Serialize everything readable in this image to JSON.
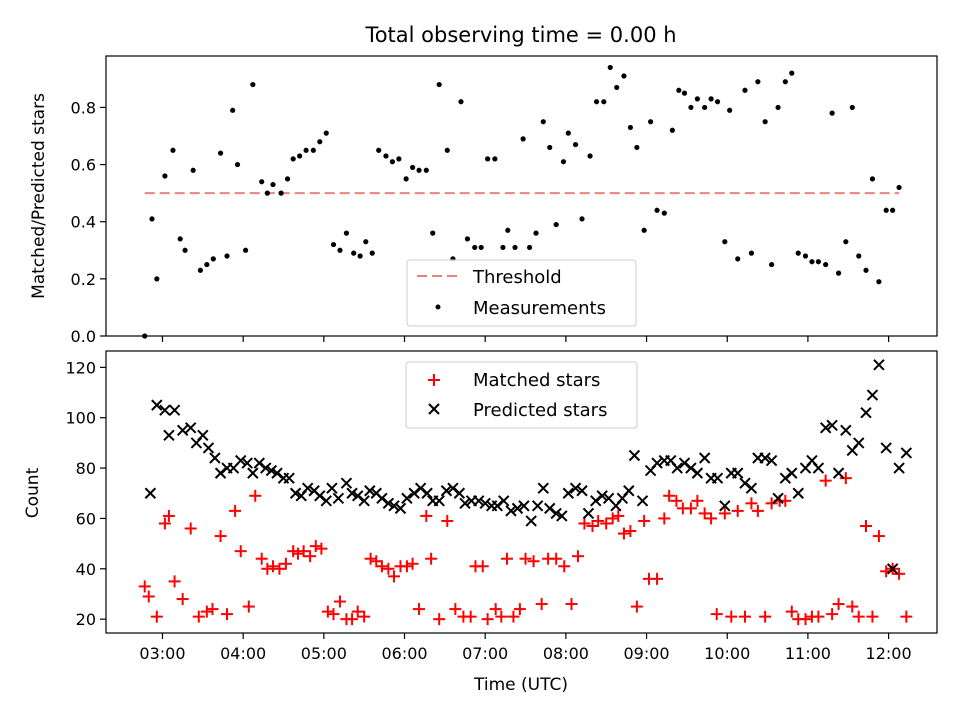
{
  "chart_data": [
    {
      "type": "scatter",
      "title": "Total observing time = 0.00 h",
      "xlabel": "",
      "ylabel": "Matched/Predicted stars",
      "ylim": [
        0,
        0.98
      ],
      "y_ticks": [
        "0.0",
        "0.2",
        "0.4",
        "0.6",
        "0.8"
      ],
      "legend_position": "bottom-center",
      "threshold": {
        "name": "Threshold",
        "value": 0.5,
        "color": "#f08080"
      },
      "series": [
        {
          "name": "Measurements",
          "color": "#000000",
          "x": [
            2.78,
            2.87,
            2.93,
            3.03,
            3.13,
            3.22,
            3.28,
            3.38,
            3.47,
            3.55,
            3.63,
            3.72,
            3.8,
            3.87,
            3.93,
            4.03,
            4.12,
            4.23,
            4.3,
            4.37,
            4.47,
            4.55,
            4.62,
            4.7,
            4.78,
            4.87,
            4.95,
            5.03,
            5.12,
            5.2,
            5.28,
            5.37,
            5.45,
            5.52,
            5.6,
            5.68,
            5.77,
            5.85,
            5.93,
            6.02,
            6.1,
            6.18,
            6.27,
            6.35,
            6.43,
            6.53,
            6.6,
            6.7,
            6.78,
            6.87,
            6.95,
            7.03,
            7.12,
            7.22,
            7.28,
            7.37,
            7.47,
            7.55,
            7.63,
            7.72,
            7.8,
            7.88,
            7.97,
            8.03,
            8.12,
            8.2,
            8.3,
            8.38,
            8.47,
            8.55,
            8.63,
            8.72,
            8.8,
            8.88,
            8.97,
            9.05,
            9.13,
            9.22,
            9.32,
            9.4,
            9.47,
            9.55,
            9.63,
            9.72,
            9.8,
            9.88,
            9.97,
            10.03,
            10.13,
            10.22,
            10.3,
            10.38,
            10.47,
            10.55,
            10.63,
            10.72,
            10.8,
            10.88,
            10.97,
            11.05,
            11.13,
            11.22,
            11.3,
            11.38,
            11.47,
            11.55,
            11.63,
            11.72,
            11.8,
            11.88,
            11.97,
            12.05,
            12.13
          ],
          "y": [
            0.0,
            0.41,
            0.2,
            0.56,
            0.65,
            0.34,
            0.3,
            0.58,
            0.23,
            0.25,
            0.27,
            0.64,
            0.28,
            0.79,
            0.6,
            0.3,
            0.88,
            0.54,
            0.5,
            0.53,
            0.5,
            0.55,
            0.62,
            0.63,
            0.65,
            0.65,
            0.68,
            0.71,
            0.32,
            0.3,
            0.36,
            0.29,
            0.28,
            0.33,
            0.29,
            0.65,
            0.63,
            0.61,
            0.62,
            0.55,
            0.59,
            0.58,
            0.58,
            0.36,
            0.88,
            0.65,
            0.27,
            0.82,
            0.34,
            0.31,
            0.31,
            0.62,
            0.62,
            0.31,
            0.37,
            0.31,
            0.69,
            0.31,
            0.36,
            0.75,
            0.66,
            0.39,
            0.61,
            0.71,
            0.67,
            0.41,
            0.63,
            0.82,
            0.82,
            0.94,
            0.87,
            0.91,
            0.73,
            0.66,
            0.37,
            0.75,
            0.44,
            0.43,
            0.72,
            0.86,
            0.85,
            0.8,
            0.83,
            0.8,
            0.83,
            0.82,
            0.33,
            0.79,
            0.27,
            0.86,
            0.29,
            0.89,
            0.75,
            0.25,
            0.8,
            0.89,
            0.92,
            0.29,
            0.28,
            0.26,
            0.26,
            0.25,
            0.78,
            0.22,
            0.33,
            0.8,
            0.28,
            0.23,
            0.55,
            0.19,
            0.44,
            0.44,
            0.52
          ]
        }
      ]
    },
    {
      "type": "scatter",
      "title": "",
      "xlabel": "Time (UTC)",
      "ylabel": "Count",
      "ylim": [
        14.5,
        126.5
      ],
      "xlim": [
        2.3,
        12.6
      ],
      "y_ticks": [
        "20",
        "40",
        "60",
        "80",
        "100",
        "120"
      ],
      "x_ticks": [
        "03:00",
        "04:00",
        "05:00",
        "06:00",
        "07:00",
        "08:00",
        "09:00",
        "10:00",
        "11:00",
        "12:00"
      ],
      "legend_position": "top-center",
      "series": [
        {
          "name": "Matched stars",
          "color": "#ff0000",
          "marker": "+",
          "x": [
            2.78,
            2.83,
            2.93,
            3.03,
            3.08,
            3.15,
            3.25,
            3.35,
            3.45,
            3.55,
            3.62,
            3.72,
            3.8,
            3.9,
            3.97,
            4.07,
            4.15,
            4.23,
            4.3,
            4.37,
            4.45,
            4.53,
            4.62,
            4.68,
            4.75,
            4.83,
            4.9,
            4.97,
            5.05,
            5.12,
            5.2,
            5.28,
            5.35,
            5.42,
            5.5,
            5.58,
            5.65,
            5.72,
            5.8,
            5.87,
            5.95,
            6.03,
            6.1,
            6.18,
            6.27,
            6.33,
            6.43,
            6.53,
            6.63,
            6.73,
            6.82,
            6.88,
            6.97,
            7.03,
            7.13,
            7.2,
            7.27,
            7.35,
            7.43,
            7.5,
            7.6,
            7.7,
            7.78,
            7.88,
            7.98,
            8.07,
            8.15,
            8.23,
            8.33,
            8.4,
            8.5,
            8.58,
            8.65,
            8.72,
            8.8,
            8.88,
            8.97,
            9.03,
            9.13,
            9.22,
            9.28,
            9.37,
            9.45,
            9.55,
            9.63,
            9.72,
            9.8,
            9.87,
            9.97,
            10.05,
            10.13,
            10.22,
            10.3,
            10.38,
            10.47,
            10.55,
            10.65,
            10.72,
            10.8,
            10.88,
            10.97,
            11.05,
            11.13,
            11.22,
            11.3,
            11.38,
            11.47,
            11.55,
            11.63,
            11.72,
            11.8,
            11.88,
            11.97,
            12.05,
            12.13,
            12.22
          ],
          "y": [
            33,
            29,
            21,
            58,
            61,
            35,
            28,
            56,
            21,
            23,
            24,
            53,
            22,
            63,
            47,
            25,
            69,
            44,
            40,
            41,
            40,
            42,
            47,
            46,
            47,
            45,
            49,
            48,
            23,
            22,
            27,
            20,
            20,
            23,
            21,
            44,
            43,
            41,
            40,
            37,
            41,
            41,
            42,
            24,
            61,
            44,
            20,
            59,
            24,
            21,
            21,
            41,
            41,
            20,
            24,
            21,
            44,
            21,
            24,
            44,
            43,
            26,
            44,
            44,
            41,
            26,
            45,
            58,
            57,
            59,
            58,
            60,
            61,
            54,
            55,
            25,
            59,
            36,
            36,
            60,
            69,
            67,
            64,
            64,
            67,
            62,
            60,
            22,
            62,
            21,
            63,
            21,
            66,
            63,
            21,
            66,
            67,
            67,
            23,
            20,
            20,
            21,
            21,
            75,
            22,
            26,
            76,
            25,
            21,
            57,
            21,
            53,
            39,
            40,
            38,
            21
          ]
        },
        {
          "name": "Predicted stars",
          "color": "#000000",
          "marker": "x",
          "x": [
            2.85,
            2.93,
            3.03,
            3.08,
            3.15,
            3.25,
            3.35,
            3.42,
            3.5,
            3.57,
            3.65,
            3.72,
            3.8,
            3.88,
            3.97,
            4.05,
            4.12,
            4.2,
            4.28,
            4.35,
            4.42,
            4.5,
            4.57,
            4.65,
            4.72,
            4.8,
            4.88,
            4.95,
            5.03,
            5.1,
            5.18,
            5.28,
            5.35,
            5.42,
            5.5,
            5.57,
            5.65,
            5.72,
            5.8,
            5.87,
            5.95,
            6.03,
            6.12,
            6.2,
            6.28,
            6.35,
            6.43,
            6.52,
            6.6,
            6.68,
            6.75,
            6.83,
            6.92,
            7.0,
            7.08,
            7.15,
            7.23,
            7.32,
            7.4,
            7.48,
            7.57,
            7.65,
            7.72,
            7.8,
            7.88,
            7.95,
            8.03,
            8.12,
            8.2,
            8.28,
            8.37,
            8.45,
            8.53,
            8.62,
            8.7,
            8.78,
            8.85,
            8.95,
            9.05,
            9.13,
            9.22,
            9.3,
            9.38,
            9.47,
            9.55,
            9.63,
            9.72,
            9.8,
            9.88,
            9.97,
            10.05,
            10.13,
            10.22,
            10.3,
            10.38,
            10.47,
            10.55,
            10.63,
            10.72,
            10.8,
            10.88,
            10.97,
            11.05,
            11.13,
            11.22,
            11.3,
            11.38,
            11.47,
            11.55,
            11.63,
            11.72,
            11.8,
            11.88,
            11.97,
            12.05,
            12.13,
            12.22
          ],
          "y": [
            70,
            105,
            103,
            93,
            103,
            95,
            96,
            90,
            93,
            88,
            84,
            78,
            80,
            80,
            83,
            82,
            78,
            82,
            80,
            79,
            78,
            76,
            76,
            70,
            69,
            72,
            71,
            69,
            67,
            72,
            68,
            74,
            70,
            69,
            67,
            71,
            70,
            68,
            66,
            65,
            64,
            68,
            70,
            72,
            70,
            67,
            67,
            71,
            72,
            70,
            66,
            67,
            67,
            66,
            65,
            65,
            67,
            63,
            64,
            65,
            59,
            65,
            72,
            64,
            62,
            61,
            70,
            72,
            71,
            62,
            67,
            69,
            68,
            65,
            68,
            71,
            85,
            67,
            79,
            82,
            83,
            83,
            80,
            82,
            80,
            78,
            84,
            76,
            76,
            65,
            78,
            78,
            74,
            72,
            84,
            84,
            83,
            68,
            76,
            78,
            70,
            80,
            83,
            80,
            96,
            97,
            78,
            95,
            87,
            90,
            102,
            109,
            121,
            88,
            40,
            80,
            86
          ]
        }
      ]
    }
  ]
}
